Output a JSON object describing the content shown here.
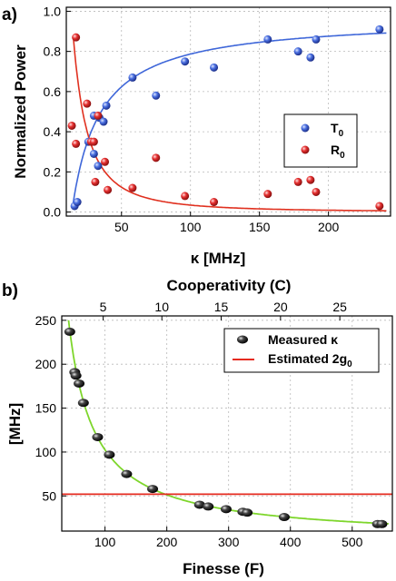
{
  "chart_data": [
    {
      "panel_label": "a)",
      "type": "scatter",
      "xlabel": "κ [MHz]",
      "ylabel": "Normalized Power",
      "xlim": [
        10,
        245
      ],
      "ylim": [
        -0.02,
        1.02
      ],
      "xticks": [
        "50",
        "100",
        "150",
        "200"
      ],
      "xtick_values": [
        50,
        100,
        150,
        200
      ],
      "yticks": [
        "0.0",
        "0.2",
        "0.4",
        "0.6",
        "0.8",
        "1.0"
      ],
      "ytick_values": [
        0.0,
        0.2,
        0.4,
        0.6,
        0.8,
        1.0
      ],
      "grid": true,
      "legend_position": "center-right",
      "series": [
        {
          "name": "T",
          "name_sub": "0",
          "color": "#3a5fd6",
          "fit_color": "#3f67d9",
          "points": [
            [
              16,
              0.03
            ],
            [
              18,
              0.05
            ],
            [
              26,
              0.35
            ],
            [
              30,
              0.48
            ],
            [
              30,
              0.29
            ],
            [
              33,
              0.23
            ],
            [
              34,
              0.47
            ],
            [
              37,
              0.45
            ],
            [
              39,
              0.53
            ],
            [
              58,
              0.67
            ],
            [
              75,
              0.58
            ],
            [
              96,
              0.75
            ],
            [
              117,
              0.72
            ],
            [
              156,
              0.86
            ],
            [
              178,
              0.8
            ],
            [
              187,
              0.77
            ],
            [
              191,
              0.86
            ],
            [
              237,
              0.91
            ]
          ]
        },
        {
          "name": "R",
          "name_sub": "0",
          "color": "#e02b2b",
          "fit_color": "#e0301f",
          "points": [
            [
              14,
              0.43
            ],
            [
              17,
              0.87
            ],
            [
              17,
              0.34
            ],
            [
              25,
              0.54
            ],
            [
              28,
              0.35
            ],
            [
              30,
              0.35
            ],
            [
              31,
              0.15
            ],
            [
              33,
              0.48
            ],
            [
              38,
              0.25
            ],
            [
              40,
              0.11
            ],
            [
              58,
              0.12
            ],
            [
              75,
              0.27
            ],
            [
              96,
              0.08
            ],
            [
              117,
              0.05
            ],
            [
              156,
              0.09
            ],
            [
              178,
              0.15
            ],
            [
              187,
              0.16
            ],
            [
              191,
              0.1
            ],
            [
              237,
              0.03
            ]
          ]
        }
      ]
    },
    {
      "panel_label": "b)",
      "type": "scatter",
      "xlabel": "Finesse (F)",
      "ylabel": "[MHz]",
      "top_xlabel": "Cooperativity (C)",
      "xlim": [
        30,
        565
      ],
      "ylim": [
        10,
        255
      ],
      "xticks": [
        "100",
        "200",
        "300",
        "400",
        "500"
      ],
      "xtick_values": [
        100,
        200,
        300,
        400,
        500
      ],
      "top_xticks": [
        "5",
        "10",
        "15",
        "20",
        "25"
      ],
      "top_xtick_values": [
        97,
        192,
        288,
        384,
        480
      ],
      "yticks": [
        "50",
        "100",
        "150",
        "200",
        "250"
      ],
      "ytick_values": [
        50,
        100,
        150,
        200,
        250
      ],
      "grid": true,
      "legend_position": "top-right",
      "series": [
        {
          "name": "Measured κ",
          "color": "#111111",
          "fit_color": "#7ed62c",
          "points": [
            [
              43,
              237
            ],
            [
              51,
              191
            ],
            [
              53,
              187
            ],
            [
              58,
              178
            ],
            [
              65,
              156
            ],
            [
              88,
              117
            ],
            [
              107,
              97
            ],
            [
              135,
              75
            ],
            [
              177,
              58
            ],
            [
              253,
              40
            ],
            [
              267,
              38
            ],
            [
              296,
              35
            ],
            [
              323,
              32
            ],
            [
              330,
              31
            ],
            [
              390,
              26
            ],
            [
              541,
              18
            ],
            [
              548,
              18
            ]
          ]
        },
        {
          "name": "Estimated 2g",
          "name_sub": "0",
          "color": "#e52a1f",
          "value": 52
        }
      ]
    }
  ]
}
